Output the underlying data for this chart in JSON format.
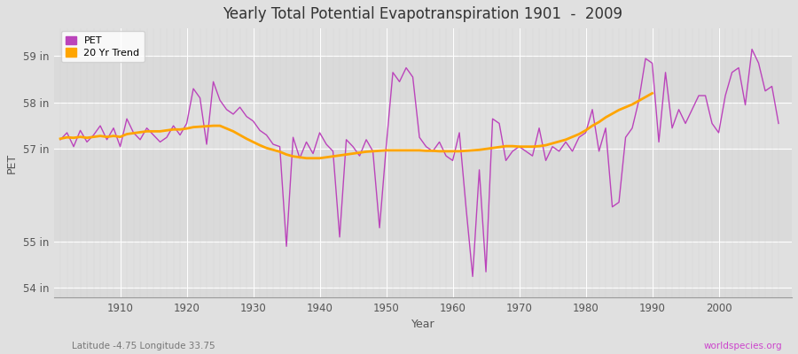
{
  "title": "Yearly Total Potential Evapotranspiration 1901  -  2009",
  "xlabel": "Year",
  "ylabel": "PET",
  "subtitle_left": "Latitude -4.75 Longitude 33.75",
  "subtitle_right": "worldspecies.org",
  "years": [
    1901,
    1902,
    1903,
    1904,
    1905,
    1906,
    1907,
    1908,
    1909,
    1910,
    1911,
    1912,
    1913,
    1914,
    1915,
    1916,
    1917,
    1918,
    1919,
    1920,
    1921,
    1922,
    1923,
    1924,
    1925,
    1926,
    1927,
    1928,
    1929,
    1930,
    1931,
    1932,
    1933,
    1934,
    1935,
    1936,
    1937,
    1938,
    1939,
    1940,
    1941,
    1942,
    1943,
    1944,
    1945,
    1946,
    1947,
    1948,
    1949,
    1950,
    1951,
    1952,
    1953,
    1954,
    1955,
    1956,
    1957,
    1958,
    1959,
    1960,
    1961,
    1962,
    1963,
    1964,
    1965,
    1966,
    1967,
    1968,
    1969,
    1970,
    1971,
    1972,
    1973,
    1974,
    1975,
    1976,
    1977,
    1978,
    1979,
    1980,
    1981,
    1982,
    1983,
    1984,
    1985,
    1986,
    1987,
    1988,
    1989,
    1990,
    1991,
    1992,
    1993,
    1994,
    1995,
    1996,
    1997,
    1998,
    1999,
    2000,
    2001,
    2002,
    2003,
    2004,
    2005,
    2006,
    2007,
    2008,
    2009
  ],
  "pet": [
    57.2,
    57.35,
    57.05,
    57.4,
    57.15,
    57.3,
    57.5,
    57.2,
    57.45,
    57.05,
    57.65,
    57.35,
    57.2,
    57.45,
    57.3,
    57.15,
    57.25,
    57.5,
    57.3,
    57.55,
    58.3,
    58.1,
    57.1,
    58.45,
    58.05,
    57.85,
    57.75,
    57.9,
    57.7,
    57.6,
    57.4,
    57.3,
    57.1,
    57.05,
    54.9,
    57.25,
    56.8,
    57.15,
    56.9,
    57.35,
    57.1,
    56.95,
    55.1,
    57.2,
    57.05,
    56.85,
    57.2,
    56.95,
    55.3,
    57.05,
    58.65,
    58.45,
    58.75,
    58.55,
    57.25,
    57.05,
    56.95,
    57.15,
    56.85,
    56.75,
    57.35,
    55.75,
    54.25,
    56.55,
    54.35,
    57.65,
    57.55,
    56.75,
    56.95,
    57.05,
    56.95,
    56.85,
    57.45,
    56.75,
    57.05,
    56.95,
    57.15,
    56.95,
    57.25,
    57.35,
    57.85,
    56.95,
    57.45,
    55.75,
    55.85,
    57.25,
    57.45,
    58.05,
    58.95,
    58.85,
    57.15,
    58.65,
    57.45,
    57.85,
    57.55,
    57.85,
    58.15,
    58.15,
    57.55,
    57.35,
    58.15,
    58.65,
    58.75,
    57.95,
    59.15,
    58.85,
    58.25,
    58.35,
    57.55
  ],
  "trend": [
    57.22,
    57.25,
    57.24,
    57.26,
    57.24,
    57.26,
    57.28,
    57.26,
    57.28,
    57.26,
    57.32,
    57.34,
    57.36,
    57.38,
    57.38,
    57.38,
    57.4,
    57.42,
    57.42,
    57.44,
    57.47,
    57.48,
    57.49,
    57.5,
    57.5,
    57.44,
    57.38,
    57.3,
    57.22,
    57.15,
    57.08,
    57.02,
    56.98,
    56.94,
    56.88,
    56.84,
    56.82,
    56.8,
    56.8,
    56.8,
    56.82,
    56.84,
    56.86,
    56.88,
    56.9,
    56.92,
    56.94,
    56.95,
    56.96,
    56.97,
    56.97,
    56.97,
    56.97,
    56.97,
    56.97,
    56.96,
    56.96,
    56.95,
    56.95,
    56.95,
    56.95,
    56.96,
    56.97,
    56.98,
    57.0,
    57.02,
    57.04,
    57.06,
    57.06,
    57.05,
    57.05,
    57.05,
    57.06,
    57.08,
    57.12,
    57.16,
    57.2,
    57.26,
    57.32,
    57.4,
    57.5,
    57.58,
    57.68,
    57.76,
    57.84,
    57.9,
    57.96,
    58.04,
    58.12,
    58.2,
    null,
    null,
    null,
    null,
    null,
    null,
    null,
    null,
    null,
    null,
    null,
    null,
    null,
    null,
    null,
    null,
    null,
    null,
    null
  ],
  "pet_color": "#BB44BB",
  "trend_color": "#FFA500",
  "fig_bg_color": "#E0E0E0",
  "plot_bg_color": "#D8D8D8",
  "grid_color_h": "#FFFFFF",
  "grid_color_v": "#CCCCCC",
  "ylim": [
    53.8,
    59.6
  ],
  "xlim": [
    1900,
    2011
  ],
  "yticks": [
    54,
    55,
    57,
    58,
    59
  ],
  "ytick_labels": [
    "54 in",
    "55 in",
    "57 in",
    "58 in",
    "59 in"
  ],
  "xticks": [
    1910,
    1920,
    1930,
    1940,
    1950,
    1960,
    1970,
    1980,
    1990,
    2000
  ]
}
